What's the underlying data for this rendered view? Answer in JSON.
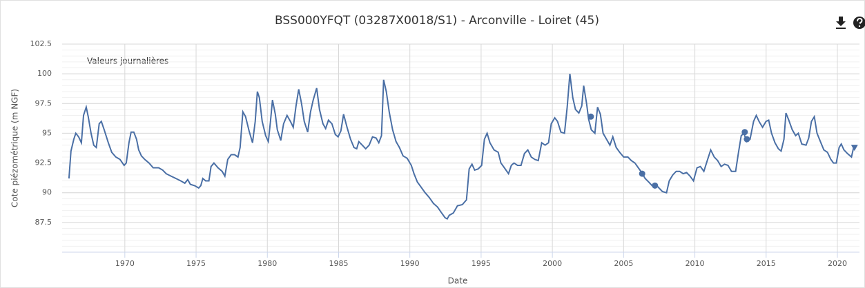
{
  "chart_data": {
    "type": "line",
    "title": "BSS000YFQT (03287X0018/S1) - Arconville - Loiret (45)",
    "annotation": "Valeurs journalières",
    "x_label": "Date",
    "y_label": "Cote piézométrique (m NGF)",
    "color": "#4a6fa5",
    "grid": true,
    "minor_grid": true,
    "xlim": [
      1965.6,
      2021.55
    ],
    "xticks": [
      1970,
      1975,
      1980,
      1985,
      1990,
      1995,
      2000,
      2005,
      2010,
      2015,
      2020
    ],
    "ylim": [
      85,
      102.5
    ],
    "yticks": [
      87.5,
      90,
      92.5,
      95,
      97.5,
      100,
      102.5
    ],
    "x": [
      1966.08,
      1966.22,
      1966.42,
      1966.56,
      1966.76,
      1966.95,
      1967.1,
      1967.29,
      1967.43,
      1967.63,
      1967.82,
      1968.0,
      1968.2,
      1968.35,
      1968.55,
      1968.84,
      1969.08,
      1969.37,
      1969.66,
      1969.95,
      1970.1,
      1970.29,
      1970.44,
      1970.63,
      1970.82,
      1970.97,
      1971.16,
      1971.4,
      1971.7,
      1971.99,
      1972.37,
      1972.66,
      1972.9,
      1973.24,
      1973.58,
      1973.92,
      1974.21,
      1974.41,
      1974.6,
      1974.89,
      1975.18,
      1975.33,
      1975.47,
      1975.67,
      1975.9,
      1976.05,
      1976.25,
      1976.54,
      1976.83,
      1977.02,
      1977.22,
      1977.46,
      1977.7,
      1977.94,
      1978.09,
      1978.28,
      1978.47,
      1978.72,
      1978.96,
      1979.15,
      1979.3,
      1979.44,
      1979.64,
      1979.88,
      1980.07,
      1980.22,
      1980.36,
      1980.56,
      1980.7,
      1980.94,
      1981.14,
      1981.38,
      1981.62,
      1981.82,
      1982.01,
      1982.2,
      1982.4,
      1982.59,
      1982.83,
      1983.03,
      1983.22,
      1983.46,
      1983.66,
      1983.9,
      1984.09,
      1984.29,
      1984.53,
      1984.77,
      1984.96,
      1985.16,
      1985.35,
      1985.59,
      1985.84,
      1986.08,
      1986.27,
      1986.42,
      1986.66,
      1986.9,
      1987.14,
      1987.38,
      1987.63,
      1987.82,
      1988.01,
      1988.16,
      1988.35,
      1988.55,
      1988.79,
      1989.03,
      1989.27,
      1989.52,
      1989.81,
      1990.1,
      1990.29,
      1990.53,
      1990.77,
      1991.07,
      1991.36,
      1991.65,
      1991.94,
      1992.23,
      1992.47,
      1992.62,
      1992.76,
      1993.05,
      1993.34,
      1993.68,
      1993.97,
      1994.16,
      1994.36,
      1994.55,
      1994.79,
      1995.04,
      1995.23,
      1995.42,
      1995.62,
      1995.91,
      1996.2,
      1996.39,
      1996.63,
      1996.92,
      1997.12,
      1997.31,
      1997.55,
      1997.8,
      1998.04,
      1998.28,
      1998.52,
      1998.77,
      1999.01,
      1999.25,
      1999.49,
      1999.73,
      1999.92,
      2000.17,
      2000.36,
      2000.6,
      2000.85,
      2001.04,
      2001.23,
      2001.43,
      2001.62,
      2001.86,
      2002.06,
      2002.2,
      2002.4,
      2002.54,
      2002.73,
      2002.98,
      2003.17,
      2003.37,
      2003.56,
      2003.8,
      2004.04,
      2004.24,
      2004.48,
      2004.72,
      2005.0,
      2005.3,
      2005.54,
      2005.79,
      2006.03,
      2006.27,
      2006.51,
      2006.76,
      2007.0,
      2007.24,
      2007.48,
      2007.72,
      2008.01,
      2008.2,
      2008.45,
      2008.69,
      2008.93,
      2009.18,
      2009.42,
      2009.66,
      2009.9,
      2010.15,
      2010.39,
      2010.63,
      2010.87,
      2011.11,
      2011.36,
      2011.6,
      2011.84,
      2012.08,
      2012.32,
      2012.57,
      2012.86,
      2013.05,
      2013.25,
      2013.44,
      2013.63,
      2013.87,
      2014.12,
      2014.31,
      2014.5,
      2014.75,
      2014.99,
      2015.18,
      2015.38,
      2015.62,
      2015.86,
      2016.05,
      2016.25,
      2016.39,
      2016.59,
      2016.83,
      2017.07,
      2017.26,
      2017.5,
      2017.8,
      2017.99,
      2018.18,
      2018.38,
      2018.57,
      2018.81,
      2019.05,
      2019.3,
      2019.54,
      2019.73,
      2019.92,
      2020.12,
      2020.27,
      2020.46,
      2020.7,
      2020.99,
      2021.14
    ],
    "values": [
      91.2,
      93.5,
      94.5,
      95.0,
      94.7,
      94.2,
      96.5,
      97.2,
      96.4,
      95.0,
      94.0,
      93.8,
      95.8,
      96.0,
      95.3,
      94.2,
      93.4,
      93.0,
      92.8,
      92.3,
      92.5,
      94.2,
      95.1,
      95.1,
      94.5,
      93.6,
      93.1,
      92.8,
      92.5,
      92.1,
      92.1,
      91.9,
      91.6,
      91.4,
      91.2,
      91.0,
      90.8,
      91.1,
      90.7,
      90.6,
      90.4,
      90.6,
      91.2,
      91.0,
      91.0,
      92.2,
      92.5,
      92.1,
      91.8,
      91.4,
      92.8,
      93.2,
      93.2,
      93.0,
      93.8,
      96.8,
      96.4,
      95.2,
      94.2,
      96.0,
      98.5,
      98.0,
      96.0,
      94.8,
      94.3,
      96.0,
      97.8,
      96.6,
      95.3,
      94.4,
      95.8,
      96.5,
      96.0,
      95.5,
      97.3,
      98.7,
      97.5,
      96.0,
      95.1,
      96.8,
      97.8,
      98.8,
      97.0,
      95.8,
      95.4,
      96.1,
      95.8,
      94.9,
      94.7,
      95.2,
      96.6,
      95.5,
      94.5,
      93.8,
      93.7,
      94.3,
      94.0,
      93.7,
      94.0,
      94.7,
      94.6,
      94.2,
      94.8,
      99.5,
      98.5,
      96.8,
      95.3,
      94.3,
      93.8,
      93.1,
      92.9,
      92.3,
      91.6,
      90.9,
      90.5,
      90.0,
      89.6,
      89.1,
      88.8,
      88.3,
      87.9,
      87.8,
      88.1,
      88.3,
      88.9,
      89.0,
      89.4,
      92.0,
      92.4,
      91.9,
      92.0,
      92.3,
      94.5,
      95.0,
      94.2,
      93.6,
      93.4,
      92.5,
      92.1,
      91.6,
      92.3,
      92.5,
      92.3,
      92.3,
      93.3,
      93.6,
      93.0,
      92.8,
      92.7,
      94.2,
      94.0,
      94.2,
      95.8,
      96.3,
      96.0,
      95.1,
      95.0,
      97.2,
      100.0,
      98.0,
      97.0,
      96.7,
      97.3,
      99.0,
      97.5,
      96.2,
      95.3,
      95.0,
      97.2,
      96.6,
      95.0,
      94.5,
      94.0,
      94.7,
      93.8,
      93.4,
      93.0,
      93.0,
      92.7,
      92.5,
      92.1,
      91.7,
      91.2,
      90.9,
      90.6,
      90.7,
      90.4,
      90.1,
      90.0,
      91.0,
      91.5,
      91.8,
      91.8,
      91.6,
      91.7,
      91.4,
      91.0,
      92.1,
      92.2,
      91.8,
      92.7,
      93.6,
      93.0,
      92.7,
      92.2,
      92.4,
      92.3,
      91.8,
      91.8,
      93.3,
      94.8,
      95.0,
      94.3,
      94.5,
      96.0,
      96.5,
      96.0,
      95.5,
      96.0,
      96.1,
      95.0,
      94.2,
      93.7,
      93.5,
      94.5,
      96.7,
      96.1,
      95.3,
      94.8,
      95.0,
      94.1,
      94.0,
      94.6,
      96.0,
      96.4,
      95.0,
      94.3,
      93.6,
      93.4,
      92.8,
      92.5,
      92.5,
      93.8,
      94.1,
      93.6,
      93.3,
      93.0,
      93.8
    ],
    "marker_x": [
      2002.7,
      2006.3,
      2007.2,
      2013.5,
      2013.65,
      2021.2
    ],
    "marker_values": [
      96.4,
      91.6,
      90.6,
      95.1,
      94.5,
      93.8
    ],
    "marker_shapes": [
      "circle",
      "circle",
      "circle",
      "circle",
      "circle",
      "triangle"
    ]
  }
}
